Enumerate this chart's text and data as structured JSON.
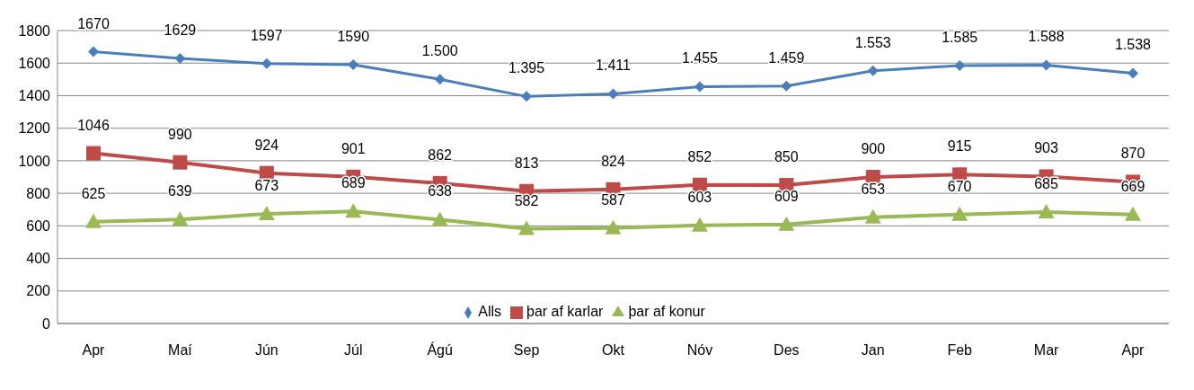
{
  "chart_data": {
    "type": "line",
    "categories": [
      "Apr",
      "Maí",
      "Jún",
      "Júl",
      "Ágú",
      "Sep",
      "Okt",
      "Nóv",
      "Des",
      "Jan",
      "Feb",
      "Mar",
      "Apr"
    ],
    "series": [
      {
        "name": "Alls",
        "color": "#4a7ebb",
        "marker": "diamond",
        "values": [
          1670,
          1629,
          1597,
          1590,
          1500,
          1395,
          1411,
          1455,
          1459,
          1553,
          1585,
          1588,
          1538
        ],
        "value_labels": [
          "1670",
          "1629",
          "1597",
          "1590",
          "1.500",
          "1.395",
          "1.411",
          "1.455",
          "1.459",
          "1.553",
          "1.585",
          "1.588",
          "1.538"
        ]
      },
      {
        "name": "þar af karlar",
        "color": "#be4b48",
        "marker": "square",
        "values": [
          1046,
          990,
          924,
          901,
          862,
          813,
          824,
          852,
          850,
          900,
          915,
          903,
          870
        ],
        "value_labels": [
          "1046",
          "990",
          "924",
          "901",
          "862",
          "813",
          "824",
          "852",
          "850",
          "900",
          "915",
          "903",
          "870"
        ]
      },
      {
        "name": "þar af konur",
        "color": "#98b954",
        "marker": "triangle",
        "values": [
          625,
          639,
          673,
          689,
          638,
          582,
          587,
          603,
          609,
          653,
          670,
          685,
          669
        ],
        "value_labels": [
          "625",
          "639",
          "673",
          "689",
          "638",
          "582",
          "587",
          "603",
          "609",
          "653",
          "670",
          "685",
          "669"
        ]
      }
    ],
    "ylim": [
      0,
      1800
    ],
    "yticks": [
      0,
      200,
      400,
      600,
      800,
      1000,
      1200,
      1400,
      1600,
      1800
    ],
    "grid": "y",
    "legend": "bottom"
  }
}
